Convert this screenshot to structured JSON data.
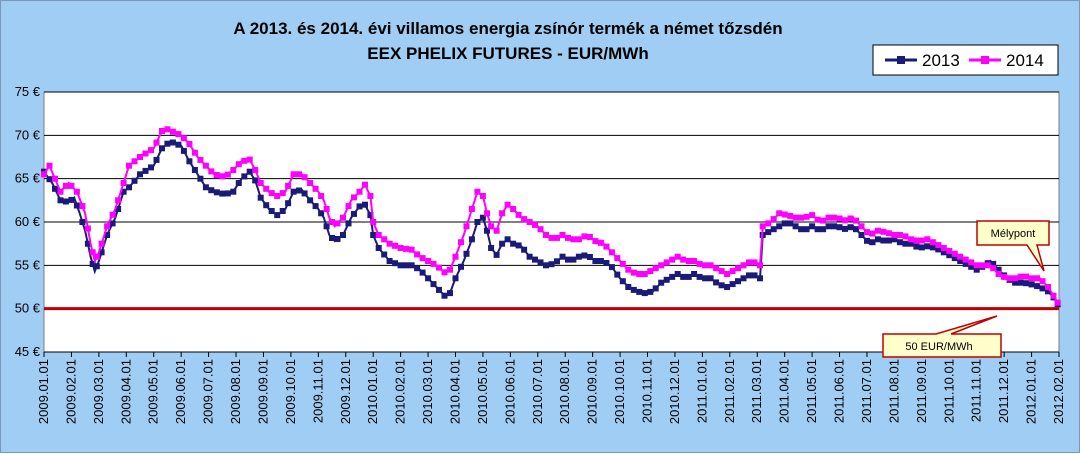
{
  "chart_data": {
    "type": "line",
    "title_line1": "A 2013. és 2014. évi villamos energia zsínór termék a német tőzsdén",
    "title_line2": "EEX PHELIX FUTURES  - EUR/MWh",
    "y_ticks": [
      "75 €",
      "70 €",
      "65 €",
      "60 €",
      "55 €",
      "50 €",
      "45 €"
    ],
    "ylim": [
      45,
      75
    ],
    "x_ticks": [
      "2009.01.01",
      "2009.02.01",
      "2009.03.01",
      "2009.04.01",
      "2009.05.01",
      "2009.06.01",
      "2009.07.01",
      "2009.08.01",
      "2009.09.01",
      "2009.10.01",
      "2009.11.01",
      "2009.12.01",
      "2010.01.01",
      "2010.02.01",
      "2010.03.01",
      "2010.04.01",
      "2010.05.01",
      "2010.06.01",
      "2010.07.01",
      "2010.08.01",
      "2010.09.01",
      "2010.10.01",
      "2010.11.01",
      "2010.12.01",
      "2011.01.01",
      "2011.02.01",
      "2011.03.01",
      "2011.04.01",
      "2011.05.01",
      "2011.06.01",
      "2011.07.01",
      "2011.08.01",
      "2011.09.01",
      "2011.10.01",
      "2011.11.01",
      "2011.12.01",
      "2012.01.01",
      "2012.02.01"
    ],
    "grid": true,
    "legend_position": "top-right",
    "series": [
      {
        "name": "2013",
        "color": "#1a1a78",
        "points": [
          [
            0.0,
            65.8
          ],
          [
            0.3,
            64.5
          ],
          [
            0.6,
            62.5
          ],
          [
            0.9,
            62.3
          ],
          [
            1.1,
            62.8
          ],
          [
            1.3,
            61.0
          ],
          [
            1.5,
            59.0
          ],
          [
            1.7,
            56.0
          ],
          [
            1.85,
            54.3
          ],
          [
            2.0,
            55.5
          ],
          [
            2.3,
            58.5
          ],
          [
            2.6,
            60.5
          ],
          [
            2.9,
            63.5
          ],
          [
            3.1,
            64.0
          ],
          [
            3.5,
            65.5
          ],
          [
            4.0,
            66.5
          ],
          [
            4.3,
            68.5
          ],
          [
            4.6,
            69.3
          ],
          [
            5.0,
            68.8
          ],
          [
            5.3,
            67.0
          ],
          [
            5.6,
            65.5
          ],
          [
            5.9,
            64.0
          ],
          [
            6.2,
            63.5
          ],
          [
            6.6,
            63.2
          ],
          [
            6.9,
            63.5
          ],
          [
            7.2,
            65.0
          ],
          [
            7.5,
            65.8
          ],
          [
            7.7,
            64.8
          ],
          [
            7.9,
            62.8
          ],
          [
            8.2,
            61.5
          ],
          [
            8.5,
            60.8
          ],
          [
            8.8,
            61.5
          ],
          [
            9.1,
            63.5
          ],
          [
            9.4,
            63.7
          ],
          [
            9.7,
            62.5
          ],
          [
            10.0,
            61.5
          ],
          [
            10.2,
            60.5
          ],
          [
            10.4,
            58.5
          ],
          [
            10.6,
            57.8
          ],
          [
            10.9,
            58.5
          ],
          [
            11.2,
            60.5
          ],
          [
            11.5,
            61.8
          ],
          [
            11.7,
            62.0
          ],
          [
            11.9,
            60.8
          ],
          [
            12.0,
            58.5
          ],
          [
            12.2,
            57.0
          ],
          [
            12.6,
            55.5
          ],
          [
            13.0,
            55.0
          ],
          [
            13.4,
            55.0
          ],
          [
            13.7,
            54.5
          ],
          [
            14.0,
            53.5
          ],
          [
            14.3,
            52.5
          ],
          [
            14.6,
            51.5
          ],
          [
            14.8,
            51.8
          ],
          [
            15.0,
            53.5
          ],
          [
            15.3,
            55.5
          ],
          [
            15.6,
            58.0
          ],
          [
            15.8,
            60.0
          ],
          [
            16.0,
            60.5
          ],
          [
            16.15,
            59.0
          ],
          [
            16.3,
            57.0
          ],
          [
            16.5,
            56.2
          ],
          [
            16.7,
            57.5
          ],
          [
            16.9,
            58.0
          ],
          [
            17.1,
            57.5
          ],
          [
            17.4,
            57.2
          ],
          [
            17.7,
            56.0
          ],
          [
            18.0,
            55.5
          ],
          [
            18.3,
            55.0
          ],
          [
            18.6,
            55.2
          ],
          [
            18.9,
            56.0
          ],
          [
            19.2,
            55.5
          ],
          [
            19.5,
            56.0
          ],
          [
            19.8,
            56.2
          ],
          [
            20.1,
            55.5
          ],
          [
            20.4,
            55.5
          ],
          [
            20.7,
            54.8
          ],
          [
            21.0,
            53.5
          ],
          [
            21.3,
            52.5
          ],
          [
            21.6,
            52.0
          ],
          [
            21.9,
            51.8
          ],
          [
            22.2,
            52.0
          ],
          [
            22.5,
            53.0
          ],
          [
            22.8,
            53.5
          ],
          [
            23.1,
            54.0
          ],
          [
            23.4,
            53.5
          ],
          [
            23.7,
            54.0
          ],
          [
            24.0,
            53.5
          ],
          [
            24.3,
            53.5
          ],
          [
            24.6,
            52.8
          ],
          [
            24.9,
            52.5
          ],
          [
            25.2,
            53.0
          ],
          [
            25.5,
            53.5
          ],
          [
            25.8,
            54.0
          ],
          [
            26.1,
            53.5
          ],
          [
            26.2,
            58.5
          ],
          [
            26.5,
            59.0
          ],
          [
            26.8,
            59.5
          ],
          [
            27.1,
            60.0
          ],
          [
            27.4,
            59.5
          ],
          [
            27.7,
            59.0
          ],
          [
            28.0,
            59.5
          ],
          [
            28.3,
            59.0
          ],
          [
            28.6,
            59.5
          ],
          [
            28.9,
            59.5
          ],
          [
            29.2,
            59.2
          ],
          [
            29.5,
            59.5
          ],
          [
            29.8,
            58.5
          ],
          [
            30.1,
            57.5
          ],
          [
            30.4,
            58.0
          ],
          [
            30.7,
            57.8
          ],
          [
            31.0,
            58.0
          ],
          [
            31.3,
            57.5
          ],
          [
            31.6,
            57.5
          ],
          [
            31.9,
            57.0
          ],
          [
            32.2,
            57.2
          ],
          [
            32.5,
            57.0
          ],
          [
            32.8,
            56.5
          ],
          [
            33.1,
            56.0
          ],
          [
            33.4,
            55.5
          ],
          [
            33.7,
            55.0
          ],
          [
            34.0,
            54.5
          ],
          [
            34.3,
            55.0
          ],
          [
            34.5,
            55.5
          ],
          [
            34.8,
            54.5
          ],
          [
            35.1,
            53.5
          ],
          [
            35.4,
            53.0
          ],
          [
            35.7,
            53.0
          ],
          [
            36.0,
            52.8
          ],
          [
            36.3,
            52.5
          ],
          [
            36.6,
            52.0
          ],
          [
            36.8,
            51.3
          ],
          [
            36.95,
            50.5
          ]
        ]
      },
      {
        "name": "2014",
        "color": "#ff00ff",
        "points": [
          [
            0.0,
            65.5
          ],
          [
            0.2,
            66.5
          ],
          [
            0.4,
            65.0
          ],
          [
            0.6,
            63.5
          ],
          [
            0.9,
            64.5
          ],
          [
            1.2,
            63.5
          ],
          [
            1.5,
            61.0
          ],
          [
            1.7,
            57.5
          ],
          [
            1.85,
            55.5
          ],
          [
            2.0,
            56.5
          ],
          [
            2.3,
            59.5
          ],
          [
            2.6,
            61.5
          ],
          [
            2.9,
            64.5
          ],
          [
            3.1,
            66.5
          ],
          [
            3.5,
            67.5
          ],
          [
            4.0,
            68.5
          ],
          [
            4.3,
            70.5
          ],
          [
            4.5,
            70.7
          ],
          [
            5.0,
            70.0
          ],
          [
            5.3,
            69.0
          ],
          [
            5.6,
            67.5
          ],
          [
            5.9,
            66.5
          ],
          [
            6.2,
            65.5
          ],
          [
            6.6,
            65.2
          ],
          [
            6.9,
            66.0
          ],
          [
            7.2,
            67.0
          ],
          [
            7.5,
            67.2
          ],
          [
            7.7,
            66.0
          ],
          [
            7.9,
            64.5
          ],
          [
            8.2,
            63.5
          ],
          [
            8.5,
            63.0
          ],
          [
            8.8,
            63.5
          ],
          [
            9.1,
            65.5
          ],
          [
            9.4,
            65.5
          ],
          [
            9.7,
            64.5
          ],
          [
            10.0,
            63.5
          ],
          [
            10.2,
            62.5
          ],
          [
            10.4,
            60.5
          ],
          [
            10.6,
            59.5
          ],
          [
            10.9,
            60.5
          ],
          [
            11.2,
            62.5
          ],
          [
            11.5,
            63.5
          ],
          [
            11.7,
            64.3
          ],
          [
            11.9,
            63.0
          ],
          [
            12.0,
            60.0
          ],
          [
            12.2,
            58.5
          ],
          [
            12.6,
            57.5
          ],
          [
            13.0,
            57.0
          ],
          [
            13.4,
            56.8
          ],
          [
            13.7,
            56.0
          ],
          [
            14.0,
            55.5
          ],
          [
            14.3,
            55.0
          ],
          [
            14.6,
            54.2
          ],
          [
            14.8,
            54.5
          ],
          [
            15.0,
            56.0
          ],
          [
            15.3,
            58.5
          ],
          [
            15.6,
            61.5
          ],
          [
            15.8,
            63.5
          ],
          [
            16.0,
            63.0
          ],
          [
            16.15,
            61.0
          ],
          [
            16.3,
            59.5
          ],
          [
            16.5,
            59.0
          ],
          [
            16.7,
            61.0
          ],
          [
            16.9,
            62.0
          ],
          [
            17.1,
            61.5
          ],
          [
            17.4,
            60.5
          ],
          [
            17.7,
            60.0
          ],
          [
            18.0,
            59.5
          ],
          [
            18.3,
            58.5
          ],
          [
            18.6,
            58.0
          ],
          [
            18.9,
            58.5
          ],
          [
            19.2,
            58.0
          ],
          [
            19.5,
            58.0
          ],
          [
            19.8,
            58.5
          ],
          [
            20.1,
            57.8
          ],
          [
            20.4,
            57.5
          ],
          [
            20.7,
            56.5
          ],
          [
            21.0,
            55.5
          ],
          [
            21.3,
            54.5
          ],
          [
            21.6,
            54.0
          ],
          [
            21.9,
            54.0
          ],
          [
            22.2,
            54.5
          ],
          [
            22.5,
            55.0
          ],
          [
            22.8,
            55.5
          ],
          [
            23.1,
            56.0
          ],
          [
            23.4,
            55.5
          ],
          [
            23.7,
            55.5
          ],
          [
            24.0,
            55.0
          ],
          [
            24.3,
            55.0
          ],
          [
            24.6,
            54.5
          ],
          [
            24.9,
            54.0
          ],
          [
            25.2,
            54.5
          ],
          [
            25.5,
            55.0
          ],
          [
            25.8,
            55.5
          ],
          [
            26.1,
            55.0
          ],
          [
            26.2,
            59.5
          ],
          [
            26.5,
            60.0
          ],
          [
            26.8,
            61.0
          ],
          [
            27.1,
            60.8
          ],
          [
            27.4,
            60.5
          ],
          [
            27.7,
            60.5
          ],
          [
            28.0,
            60.8
          ],
          [
            28.3,
            60.0
          ],
          [
            28.6,
            60.5
          ],
          [
            28.9,
            60.5
          ],
          [
            29.2,
            60.2
          ],
          [
            29.5,
            60.5
          ],
          [
            29.8,
            59.5
          ],
          [
            30.1,
            58.5
          ],
          [
            30.4,
            59.0
          ],
          [
            30.7,
            58.8
          ],
          [
            31.0,
            58.5
          ],
          [
            31.3,
            58.5
          ],
          [
            31.6,
            58.0
          ],
          [
            31.9,
            57.8
          ],
          [
            32.2,
            58.0
          ],
          [
            32.5,
            57.5
          ],
          [
            32.8,
            57.0
          ],
          [
            33.1,
            56.5
          ],
          [
            33.4,
            56.0
          ],
          [
            33.7,
            55.5
          ],
          [
            34.0,
            55.0
          ],
          [
            34.3,
            55.0
          ],
          [
            34.5,
            55.0
          ],
          [
            34.8,
            54.0
          ],
          [
            35.1,
            53.5
          ],
          [
            35.4,
            53.5
          ],
          [
            35.7,
            53.8
          ],
          [
            36.0,
            53.5
          ],
          [
            36.3,
            53.5
          ],
          [
            36.6,
            52.5
          ],
          [
            36.8,
            51.5
          ],
          [
            36.95,
            50.7
          ]
        ]
      }
    ],
    "reference_line": {
      "value": 50,
      "color": "#c00000"
    },
    "annotations": [
      {
        "text": "Mélypont",
        "color": "#ffffcc",
        "border": "#c00000"
      },
      {
        "text": "50 EUR/MWh",
        "color": "#ffffcc",
        "border": "#c00000"
      }
    ]
  }
}
